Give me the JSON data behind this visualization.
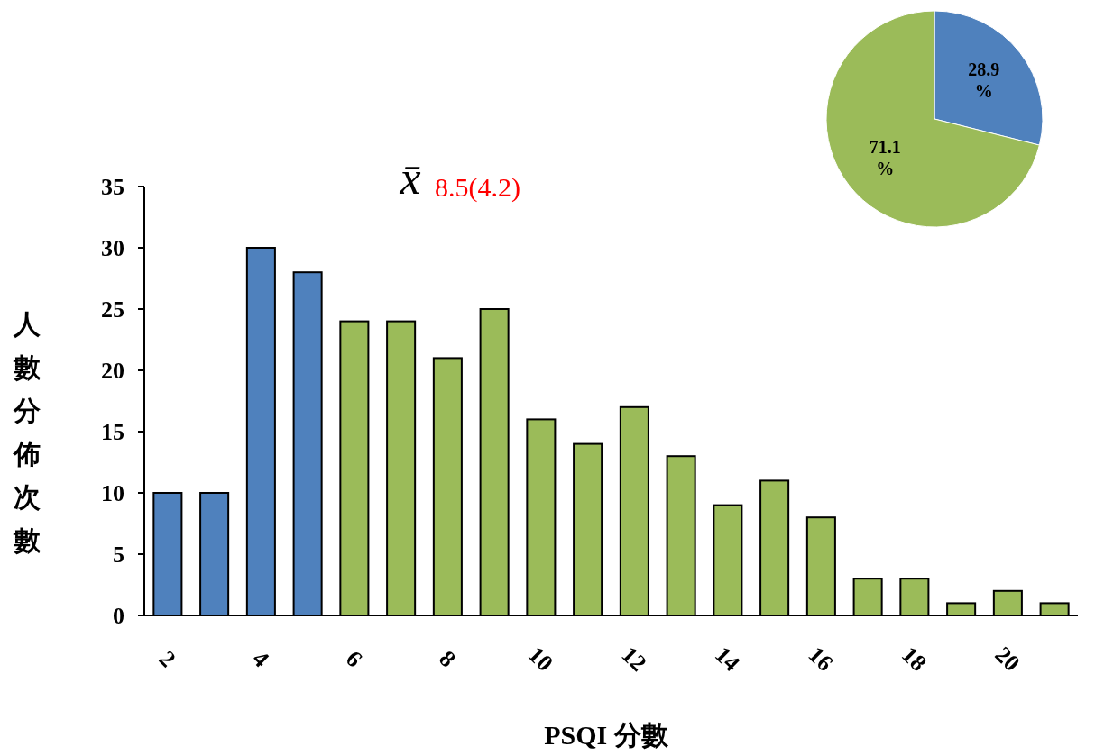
{
  "chart_data": [
    {
      "type": "bar",
      "categories": [
        "2",
        null,
        "4",
        null,
        "6",
        null,
        "8",
        null,
        "10",
        null,
        "12",
        null,
        "14",
        null,
        "16",
        null,
        "18",
        null,
        "20",
        null
      ],
      "values": [
        10,
        10,
        30,
        28,
        24,
        24,
        21,
        25,
        16,
        14,
        17,
        13,
        9,
        11,
        8,
        3,
        3,
        1,
        2,
        1
      ],
      "colors": [
        "#4f81bd",
        "#4f81bd",
        "#4f81bd",
        "#4f81bd",
        "#9bbb59",
        "#9bbb59",
        "#9bbb59",
        "#9bbb59",
        "#9bbb59",
        "#9bbb59",
        "#9bbb59",
        "#9bbb59",
        "#9bbb59",
        "#9bbb59",
        "#9bbb59",
        "#9bbb59",
        "#9bbb59",
        "#9bbb59",
        "#9bbb59",
        "#9bbb59"
      ],
      "ylim": [
        0,
        35
      ],
      "yticks": [
        0,
        5,
        10,
        15,
        20,
        25,
        30,
        35
      ],
      "xlabel": "PSQI 分數",
      "ylabel": "人數分佈次數",
      "annotations": [
        "x̄",
        "8.5(4.2)"
      ]
    },
    {
      "type": "pie",
      "categories": [
        null,
        null
      ],
      "values": [
        28.9,
        71.1
      ],
      "colors": [
        "#4f81bd",
        "#9bbb59"
      ],
      "value_labels": [
        "28.9 %",
        "71.1 %"
      ]
    }
  ]
}
